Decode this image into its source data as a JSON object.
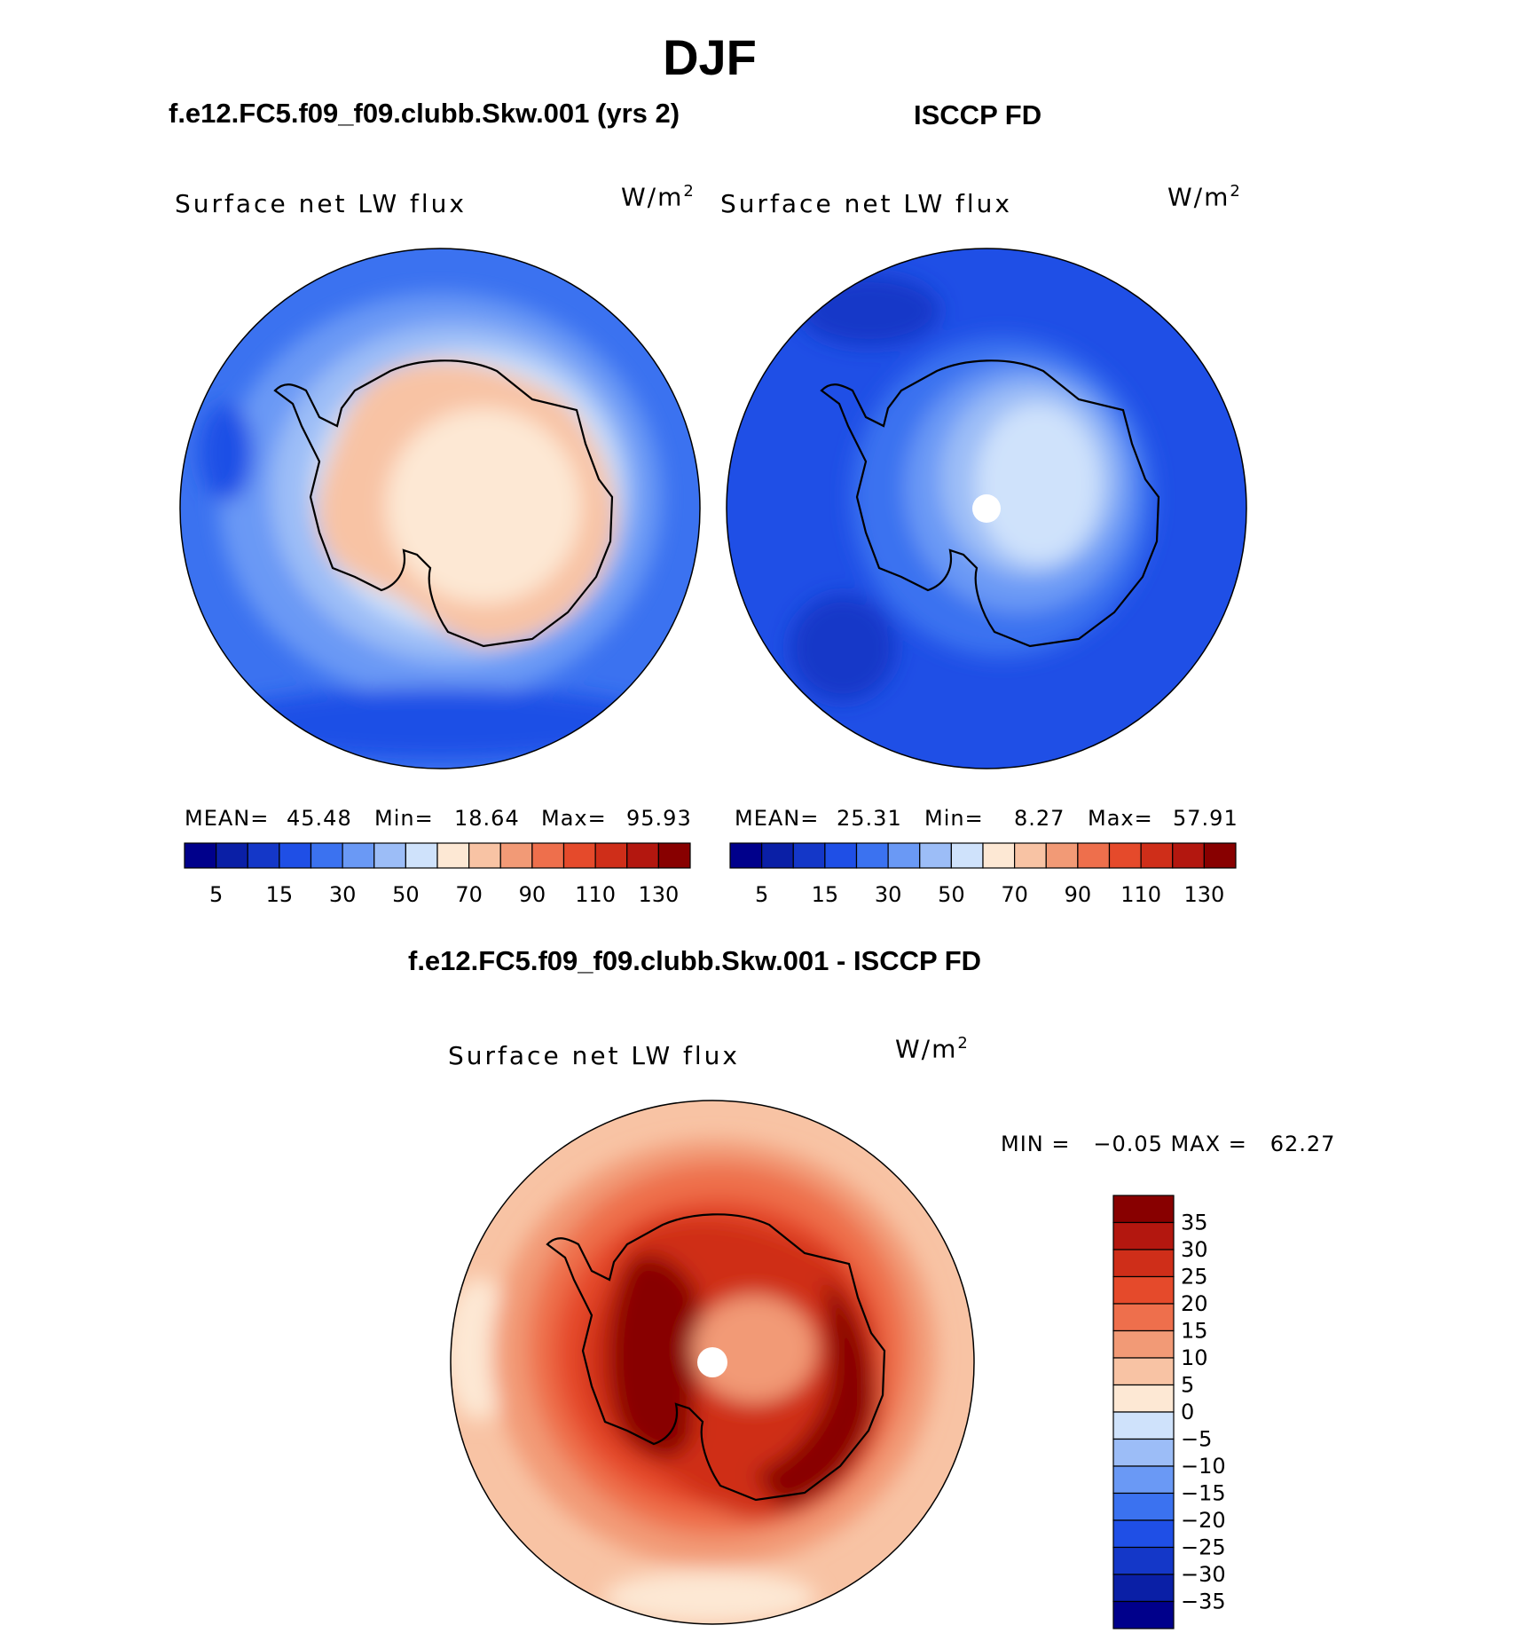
{
  "title": "DJF",
  "panels": [
    {
      "title": "f.e12.FC5.f09_f09.clubb.Skw.001 (yrs 2)",
      "variable": "Surface net LW flux",
      "units_base": "W/m",
      "units_exp": "2",
      "stats": {
        "mean_label": "MEAN=",
        "mean": "45.48",
        "min_label": "Min=",
        "min": "18.64",
        "max_label": "Max=",
        "max": "95.93"
      }
    },
    {
      "title": "ISCCP FD",
      "variable": "Surface net LW flux",
      "units_base": "W/m",
      "units_exp": "2",
      "stats": {
        "mean_label": "MEAN=",
        "mean": "25.31",
        "min_label": "Min=",
        "min": "8.27",
        "max_label": "Max=",
        "max": "57.91"
      }
    }
  ],
  "diff": {
    "title": "f.e12.FC5.f09_f09.clubb.Skw.001 - ISCCP FD",
    "variable": "Surface net LW flux",
    "units_base": "W/m",
    "units_exp": "2",
    "stats_text": "MIN =   −0.05 MAX =   62.27"
  },
  "chart_data": [
    {
      "type": "heatmap",
      "title": "f.e12.FC5.f09_f09.clubb.Skw.001 (yrs 2)",
      "projection": "south polar stereographic",
      "variable": "Surface net LW flux",
      "units": "W/m2",
      "mean": 45.48,
      "min": 18.64,
      "max": 95.93,
      "colorbar_levels": [
        5,
        10,
        15,
        20,
        30,
        40,
        50,
        60,
        70,
        80,
        90,
        100,
        110,
        120,
        130
      ],
      "colorbar_tick_labels": [
        "5",
        "15",
        "30",
        "50",
        "70",
        "90",
        "110",
        "130"
      ],
      "colors": [
        "#00008b",
        "#0a1fa6",
        "#1437c8",
        "#1f4fe6",
        "#3b72f0",
        "#6a99f5",
        "#9cbdf7",
        "#cfe2fb",
        "#fde8d4",
        "#f8c3a4",
        "#f29a76",
        "#ee6f4c",
        "#e54a2b",
        "#cf2e19",
        "#b3170f",
        "#880000"
      ]
    },
    {
      "type": "heatmap",
      "title": "ISCCP FD",
      "projection": "south polar stereographic",
      "variable": "Surface net LW flux",
      "units": "W/m2",
      "mean": 25.31,
      "min": 8.27,
      "max": 57.91,
      "colorbar_levels": [
        5,
        10,
        15,
        20,
        30,
        40,
        50,
        60,
        70,
        80,
        90,
        100,
        110,
        120,
        130
      ],
      "colorbar_tick_labels": [
        "5",
        "15",
        "30",
        "50",
        "70",
        "90",
        "110",
        "130"
      ],
      "colors": [
        "#00008b",
        "#0a1fa6",
        "#1437c8",
        "#1f4fe6",
        "#3b72f0",
        "#6a99f5",
        "#9cbdf7",
        "#cfe2fb",
        "#fde8d4",
        "#f8c3a4",
        "#f29a76",
        "#ee6f4c",
        "#e54a2b",
        "#cf2e19",
        "#b3170f",
        "#880000"
      ]
    },
    {
      "type": "heatmap",
      "title": "f.e12.FC5.f09_f09.clubb.Skw.001 - ISCCP FD",
      "projection": "south polar stereographic",
      "variable": "Surface net LW flux",
      "units": "W/m2",
      "min": -0.05,
      "max": 62.27,
      "colorbar_levels": [
        35,
        30,
        25,
        20,
        15,
        10,
        5,
        0,
        -5,
        -10,
        -15,
        -20,
        -25,
        -30,
        -35
      ],
      "colorbar_tick_labels": [
        "35",
        "30",
        "25",
        "20",
        "15",
        "10",
        "5",
        "0",
        "−5",
        "−10",
        "−15",
        "−20",
        "−25",
        "−30",
        "−35"
      ],
      "colors": [
        "#880000",
        "#b3170f",
        "#cf2e19",
        "#e54a2b",
        "#ee6f4c",
        "#f29a76",
        "#f8c3a4",
        "#fde8d4",
        "#cfe2fb",
        "#9cbdf7",
        "#6a99f5",
        "#3b72f0",
        "#1f4fe6",
        "#1437c8",
        "#0a1fa6",
        "#00008b"
      ]
    }
  ]
}
